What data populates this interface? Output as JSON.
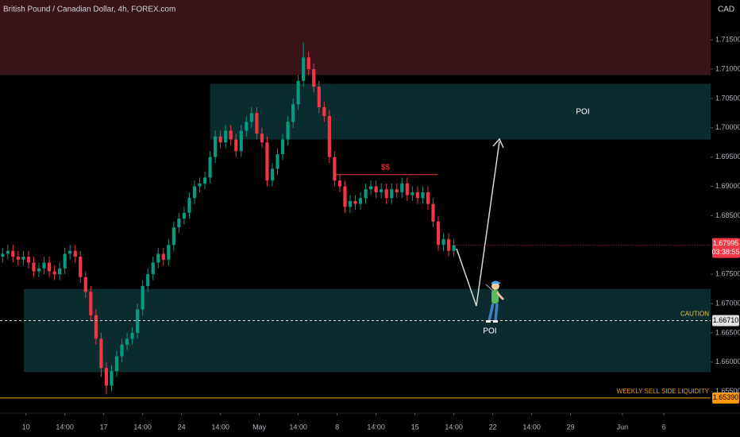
{
  "chart_data": {
    "type": "candlestick",
    "title": "British Pound / Canadian Dollar, 4h, FOREX.com",
    "currency": "CAD",
    "countdown": "03:38:55",
    "up_color": "#089981",
    "down_color": "#f23645",
    "grid": false,
    "xlim": [
      0,
      137
    ],
    "ylim": [
      1.6513,
      1.7218
    ],
    "xticks": [
      {
        "value": 5,
        "label": "10"
      },
      {
        "value": 12.5,
        "label": "14:00"
      },
      {
        "value": 20,
        "label": "17"
      },
      {
        "value": 27.5,
        "label": "14:00"
      },
      {
        "value": 35,
        "label": "24"
      },
      {
        "value": 42.5,
        "label": "14:00"
      },
      {
        "value": 50,
        "label": "May"
      },
      {
        "value": 57.5,
        "label": "14:00"
      },
      {
        "value": 65,
        "label": "8"
      },
      {
        "value": 72.5,
        "label": "14:00"
      },
      {
        "value": 80,
        "label": "15"
      },
      {
        "value": 87.5,
        "label": "14:00"
      },
      {
        "value": 95,
        "label": "22"
      },
      {
        "value": 102.5,
        "label": "14:00"
      },
      {
        "value": 110,
        "label": "29"
      },
      {
        "value": 120,
        "label": "Jun"
      },
      {
        "value": 128,
        "label": "6"
      }
    ],
    "yticks": [
      {
        "value": 1.715,
        "label": "1.71500"
      },
      {
        "value": 1.71,
        "label": "1.71000"
      },
      {
        "value": 1.705,
        "label": "1.70500"
      },
      {
        "value": 1.7,
        "label": "1.70000"
      },
      {
        "value": 1.695,
        "label": "1.69500"
      },
      {
        "value": 1.69,
        "label": "1.69000"
      },
      {
        "value": 1.685,
        "label": "1.68500"
      },
      {
        "value": 1.675,
        "label": "1.67500"
      },
      {
        "value": 1.67,
        "label": "1.67000"
      },
      {
        "value": 1.665,
        "label": "1.66500"
      },
      {
        "value": 1.66,
        "label": "1.66000"
      },
      {
        "value": 1.655,
        "label": "1.65500"
      }
    ],
    "open": [
      1.678,
      1.6785,
      1.679,
      1.678,
      1.6775,
      1.678,
      1.677,
      1.6755,
      1.676,
      1.677,
      1.6755,
      1.675,
      1.676,
      1.6785,
      1.679,
      1.678,
      1.6745,
      1.672,
      1.668,
      1.664,
      1.659,
      1.656,
      1.6585,
      1.661,
      1.663,
      1.664,
      1.665,
      1.669,
      1.673,
      1.675,
      1.677,
      1.6785,
      1.6775,
      1.68,
      1.683,
      1.6845,
      1.6855,
      1.688,
      1.69,
      1.6905,
      1.6915,
      1.695,
      1.6985,
      1.6975,
      1.6995,
      1.698,
      1.696,
      1.6995,
      1.701,
      1.7025,
      1.699,
      1.6975,
      1.691,
      1.693,
      1.6955,
      1.698,
      1.701,
      1.704,
      1.708,
      1.712,
      1.71,
      1.707,
      1.7035,
      1.702,
      1.695,
      1.691,
      1.69,
      1.6865,
      1.6875,
      1.687,
      1.688,
      1.6895,
      1.69,
      1.689,
      1.6895,
      1.688,
      1.6895,
      1.689,
      1.6905,
      1.6885,
      1.689,
      1.688,
      1.689,
      1.687,
      1.684,
      1.68,
      1.681,
      1.679
    ],
    "high": [
      1.6795,
      1.68,
      1.68,
      1.679,
      1.679,
      1.679,
      1.678,
      1.677,
      1.678,
      1.678,
      1.6765,
      1.677,
      1.6795,
      1.68,
      1.68,
      1.679,
      1.6755,
      1.673,
      1.669,
      1.665,
      1.66,
      1.6595,
      1.662,
      1.664,
      1.665,
      1.666,
      1.67,
      1.674,
      1.676,
      1.678,
      1.6795,
      1.6795,
      1.681,
      1.684,
      1.6855,
      1.6865,
      1.689,
      1.691,
      1.6915,
      1.6925,
      1.696,
      1.6995,
      1.6995,
      1.7005,
      1.7005,
      1.699,
      1.7005,
      1.702,
      1.7035,
      1.7035,
      1.7,
      1.6985,
      1.694,
      1.6965,
      1.699,
      1.702,
      1.705,
      1.709,
      1.7145,
      1.713,
      1.711,
      1.708,
      1.7045,
      1.703,
      1.696,
      1.692,
      1.691,
      1.6885,
      1.6885,
      1.689,
      1.6905,
      1.691,
      1.691,
      1.6905,
      1.6905,
      1.6905,
      1.6905,
      1.6915,
      1.6915,
      1.69,
      1.69,
      1.69,
      1.69,
      1.688,
      1.685,
      1.682,
      1.682,
      1.681
    ],
    "low": [
      1.677,
      1.6775,
      1.677,
      1.6765,
      1.6765,
      1.676,
      1.6745,
      1.6745,
      1.675,
      1.6745,
      1.674,
      1.674,
      1.675,
      1.6775,
      1.677,
      1.6735,
      1.671,
      1.667,
      1.663,
      1.6575,
      1.6545,
      1.655,
      1.6575,
      1.66,
      1.662,
      1.663,
      1.664,
      1.668,
      1.672,
      1.674,
      1.676,
      1.6765,
      1.6765,
      1.679,
      1.682,
      1.6835,
      1.6845,
      1.687,
      1.689,
      1.6895,
      1.6905,
      1.694,
      1.6965,
      1.6965,
      1.697,
      1.695,
      1.695,
      1.6985,
      1.7,
      1.698,
      1.6965,
      1.69,
      1.69,
      1.692,
      1.6945,
      1.697,
      1.7,
      1.703,
      1.707,
      1.709,
      1.706,
      1.7025,
      1.701,
      1.694,
      1.69,
      1.689,
      1.6855,
      1.6855,
      1.686,
      1.686,
      1.687,
      1.6885,
      1.688,
      1.688,
      1.687,
      1.687,
      1.688,
      1.688,
      1.6875,
      1.6875,
      1.687,
      1.687,
      1.686,
      1.683,
      1.679,
      1.679,
      1.678,
      1.678
    ],
    "close": [
      1.6785,
      1.679,
      1.678,
      1.6775,
      1.678,
      1.677,
      1.6755,
      1.676,
      1.677,
      1.6755,
      1.675,
      1.676,
      1.6785,
      1.679,
      1.678,
      1.6745,
      1.672,
      1.668,
      1.664,
      1.659,
      1.656,
      1.6585,
      1.661,
      1.663,
      1.664,
      1.665,
      1.669,
      1.673,
      1.675,
      1.677,
      1.6785,
      1.6775,
      1.68,
      1.683,
      1.6845,
      1.6855,
      1.688,
      1.69,
      1.6905,
      1.6915,
      1.695,
      1.6985,
      1.6975,
      1.6995,
      1.698,
      1.696,
      1.6995,
      1.701,
      1.7025,
      1.699,
      1.6975,
      1.691,
      1.693,
      1.6955,
      1.698,
      1.701,
      1.704,
      1.708,
      1.712,
      1.71,
      1.707,
      1.7035,
      1.702,
      1.695,
      1.691,
      1.69,
      1.6865,
      1.6875,
      1.687,
      1.688,
      1.6895,
      1.69,
      1.689,
      1.6895,
      1.688,
      1.6895,
      1.689,
      1.6905,
      1.6885,
      1.689,
      1.688,
      1.689,
      1.687,
      1.684,
      1.68,
      1.681,
      1.679,
      1.67995
    ],
    "zones": [
      {
        "from": 1.709,
        "to": 1.7218,
        "start": 0,
        "color": "#3a1419"
      },
      {
        "from": 1.698,
        "to": 1.7075,
        "start": 40.5,
        "color": "#0b2c2e",
        "label": "POI"
      },
      {
        "from": 1.6583,
        "to": 1.6725,
        "start": 4.6,
        "color": "#0b2c2e",
        "label": "POI"
      }
    ],
    "liquidity_line": {
      "value": 1.692,
      "start": 64.2,
      "end": 84.4,
      "label": "$$",
      "color": "#f23645"
    },
    "levels": [
      {
        "value": 1.6671,
        "label": "1.66710",
        "text": "CAUTION",
        "color": "#e0e0e0",
        "text_color": "#f2c94c",
        "dashed": true
      },
      {
        "value": 1.6539,
        "label": "1.65390",
        "text": "WEEKLY SELL SIDE LIQUIDITY",
        "color": "#ff9800",
        "text_color": "#ff9800",
        "dashed": false
      }
    ]
  }
}
